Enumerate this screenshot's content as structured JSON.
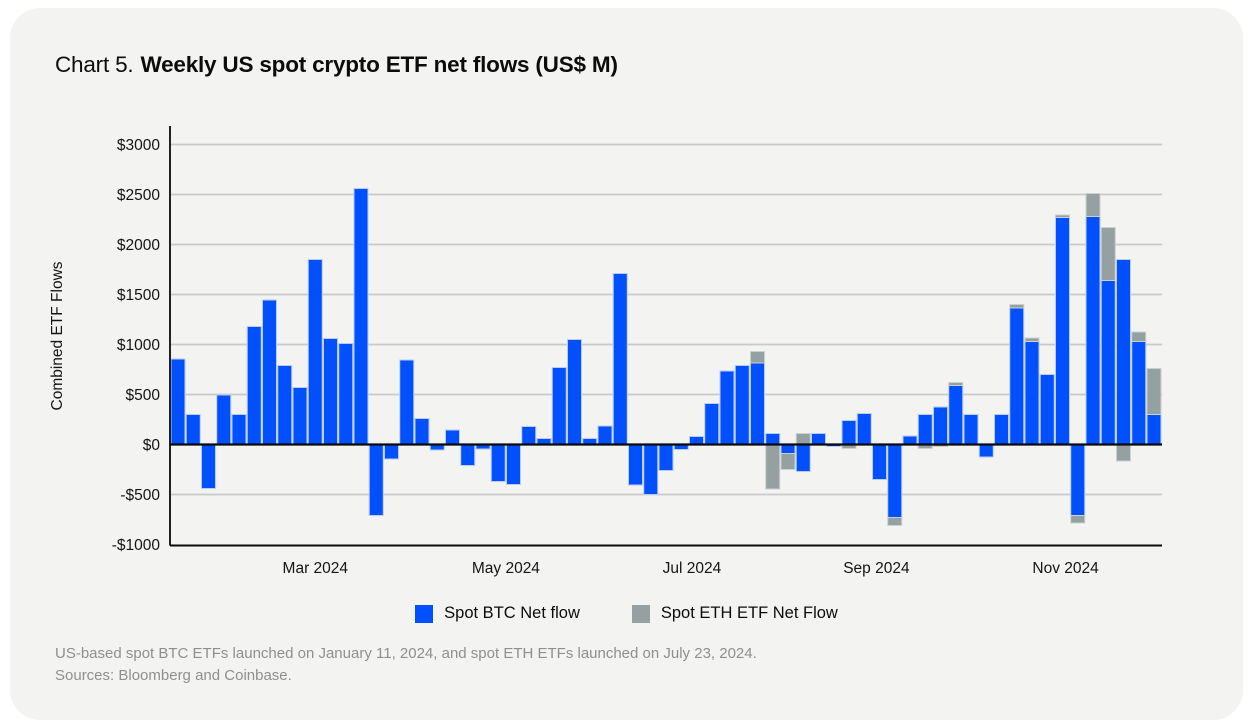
{
  "header": {
    "prefix": "Chart 5.",
    "title": "Weekly US spot crypto ETF net flows (US$ M)"
  },
  "footnote": {
    "line1": "US-based spot BTC ETFs launched on January 11, 2024, and spot ETH ETFs launched on July 23, 2024.",
    "line2": "Sources: Bloomberg and Coinbase."
  },
  "chart_data": {
    "type": "bar",
    "stacked": true,
    "title": "Weekly US spot crypto ETF net flows (US$ M)",
    "ylabel": "Combined ETF Flows",
    "xlabel": "",
    "ylim": [
      -1000,
      3000
    ],
    "grid": true,
    "legend_position": "bottom",
    "grid_color": "#c9c9cb",
    "axis_color": "#0b0b0c",
    "background_color": "#f3f3f1",
    "yticks": [
      {
        "v": 3000,
        "label": "$3000"
      },
      {
        "v": 2500,
        "label": "$2500"
      },
      {
        "v": 2000,
        "label": "$2000"
      },
      {
        "v": 1500,
        "label": "$1500"
      },
      {
        "v": 1000,
        "label": "$1000"
      },
      {
        "v": 500,
        "label": "$500"
      },
      {
        "v": 0,
        "label": "$0"
      },
      {
        "v": -500,
        "label": "-$500"
      },
      {
        "v": -1000,
        "label": "-$1000"
      }
    ],
    "xticks": [
      {
        "label": "Mar 2024",
        "week": 10
      },
      {
        "label": "May 2024",
        "week": 22.5
      },
      {
        "label": "Jul 2024",
        "week": 34.7
      },
      {
        "label": "Sep 2024",
        "week": 46.8
      },
      {
        "label": "Nov 2024",
        "week": 59.2
      }
    ],
    "series": [
      {
        "name": "Spot BTC Net flow",
        "key": "btc",
        "color": "#0150fb",
        "stroke": "#b9cbf8",
        "values": [
          855,
          300,
          -440,
          495,
          300,
          1180,
          1445,
          790,
          570,
          1850,
          1060,
          1010,
          2560,
          -710,
          -145,
          845,
          260,
          -55,
          145,
          -210,
          -45,
          -370,
          -400,
          180,
          60,
          770,
          1050,
          60,
          185,
          1710,
          -405,
          -500,
          -260,
          -50,
          80,
          410,
          735,
          790,
          815,
          110,
          -90,
          -270,
          110,
          -20,
          240,
          310,
          -350,
          -730,
          85,
          300,
          375,
          590,
          300,
          -125,
          300,
          1365,
          1030,
          700,
          2270,
          -710,
          2280,
          1640,
          1850,
          1030,
          300
        ]
      },
      {
        "name": "Spot ETH ETF Net Flow",
        "key": "eth",
        "color": "#95a0a0",
        "stroke": "#c9d2d2",
        "values": [
          0,
          0,
          0,
          0,
          0,
          0,
          0,
          0,
          0,
          0,
          0,
          0,
          0,
          0,
          0,
          0,
          0,
          0,
          0,
          0,
          0,
          0,
          0,
          0,
          0,
          0,
          0,
          0,
          0,
          0,
          0,
          0,
          0,
          0,
          0,
          0,
          0,
          0,
          115,
          -445,
          -160,
          110,
          0,
          0,
          -40,
          0,
          0,
          -80,
          0,
          -40,
          -20,
          30,
          0,
          0,
          0,
          35,
          35,
          0,
          25,
          -75,
          230,
          530,
          -165,
          95,
          460
        ]
      }
    ]
  }
}
